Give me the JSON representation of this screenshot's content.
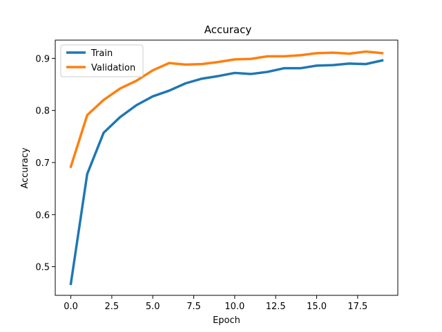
{
  "chart_data": {
    "type": "line",
    "title": "Accuracy",
    "xlabel": "Epoch",
    "ylabel": "Accuracy",
    "x": [
      0,
      1,
      2,
      3,
      4,
      5,
      6,
      7,
      8,
      9,
      10,
      11,
      12,
      13,
      14,
      15,
      16,
      17,
      18,
      19
    ],
    "xlim": [
      -0.95,
      19.95
    ],
    "ylim": [
      0.445,
      0.935
    ],
    "xticks": [
      0.0,
      2.5,
      5.0,
      7.5,
      10.0,
      12.5,
      15.0,
      17.5
    ],
    "xtick_labels": [
      "0.0",
      "2.5",
      "5.0",
      "7.5",
      "10.0",
      "12.5",
      "15.0",
      "17.5"
    ],
    "yticks": [
      0.5,
      0.6,
      0.7,
      0.8,
      0.9
    ],
    "ytick_labels": [
      "0.5",
      "0.6",
      "0.7",
      "0.8",
      "0.9"
    ],
    "grid": false,
    "legend_position": "upper-left",
    "series": [
      {
        "name": "Train",
        "color": "#1f77b4",
        "values": [
          0.467,
          0.678,
          0.757,
          0.787,
          0.81,
          0.827,
          0.838,
          0.852,
          0.861,
          0.866,
          0.872,
          0.87,
          0.874,
          0.881,
          0.881,
          0.886,
          0.887,
          0.89,
          0.889,
          0.896
        ]
      },
      {
        "name": "Validation",
        "color": "#ff7f0e",
        "values": [
          0.692,
          0.791,
          0.82,
          0.842,
          0.857,
          0.877,
          0.891,
          0.888,
          0.889,
          0.893,
          0.898,
          0.899,
          0.904,
          0.904,
          0.906,
          0.91,
          0.911,
          0.909,
          0.913,
          0.91
        ]
      }
    ]
  }
}
